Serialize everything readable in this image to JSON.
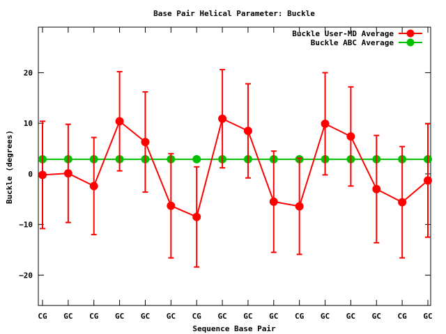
{
  "chart_data": {
    "type": "line",
    "title": "Base Pair Helical Parameter: Buckle",
    "xlabel": "Sequence Base Pair",
    "ylabel": "Buckle (degrees)",
    "categories": [
      "CG",
      "GC",
      "CG",
      "GC",
      "GC",
      "GC",
      "CG",
      "GC",
      "GC",
      "GC",
      "CG",
      "GC",
      "GC",
      "GC",
      "CG",
      "GC"
    ],
    "ylim": [
      -26,
      29
    ],
    "yticks": [
      -20,
      -10,
      0,
      10,
      20
    ],
    "grid": false,
    "legend_position": "top-right",
    "series": [
      {
        "name": "Buckle User-MD Average",
        "color": "#ff0000",
        "values": [
          -0.2,
          0.1,
          -2.4,
          10.4,
          6.3,
          -6.3,
          -8.5,
          10.9,
          8.5,
          -5.5,
          -6.4,
          9.9,
          7.4,
          -3.0,
          -5.6,
          -1.3
        ],
        "error": [
          10.6,
          9.7,
          9.6,
          9.8,
          9.9,
          10.3,
          9.9,
          9.7,
          9.3,
          10.0,
          9.5,
          10.1,
          9.8,
          10.6,
          11.0,
          11.2
        ]
      },
      {
        "name": "Buckle ABC Average",
        "color": "#00c000",
        "values": [
          2.9,
          2.9,
          2.9,
          2.9,
          2.9,
          2.9,
          2.9,
          2.9,
          2.9,
          2.9,
          2.9,
          2.9,
          2.9,
          2.9,
          2.9,
          2.9
        ]
      }
    ]
  }
}
